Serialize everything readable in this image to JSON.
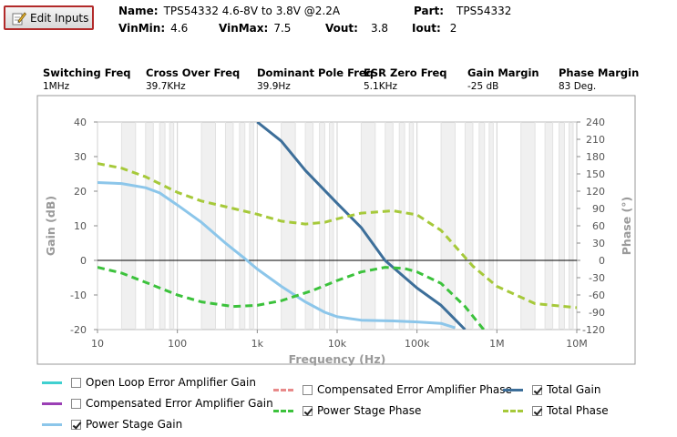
{
  "toolbar": {
    "edit_label": "Edit Inputs"
  },
  "header": {
    "name_label": "Name:",
    "name_value": "TPS54332 4.6-8V to 3.8V @2.2A",
    "part_label": "Part:",
    "part_value": "TPS54332",
    "vinmin_label": "VinMin:",
    "vinmin_value": "4.6",
    "vinmax_label": "VinMax:",
    "vinmax_value": "7.5",
    "vout_label": "Vout:",
    "vout_value": "3.8",
    "iout_label": "Iout:",
    "iout_value": "2"
  },
  "metrics": [
    {
      "label": "Switching Freq",
      "value": "1MHz"
    },
    {
      "label": "Cross Over Freq",
      "value": "39.7KHz"
    },
    {
      "label": "Dominant Pole Freq",
      "value": "39.9Hz"
    },
    {
      "label": "ESR Zero Freq",
      "value": "5.1KHz"
    },
    {
      "label": "Gain Margin",
      "value": "-25 dB"
    },
    {
      "label": "Phase Margin",
      "value": "83 Deg."
    }
  ],
  "legend": [
    {
      "label": "Open Loop Error Amplifier Gain",
      "color": "#40d0d0",
      "dashed": false,
      "checked": false
    },
    {
      "label": "Compensated Error Amplifier Gain",
      "color": "#9b3fb5",
      "dashed": false,
      "checked": false
    },
    {
      "label": "Power Stage Gain",
      "color": "#8cc6ea",
      "dashed": false,
      "checked": true
    },
    {
      "label": "Compensated Error Amplifier Phase",
      "color": "#e88a8a",
      "dashed": true,
      "checked": false
    },
    {
      "label": "Power Stage Phase",
      "color": "#3cc23c",
      "dashed": true,
      "checked": true
    },
    {
      "label": "Total Gain",
      "color": "#3d6f9a",
      "dashed": false,
      "checked": true
    },
    {
      "label": "Total Phase",
      "color": "#a6c93a",
      "dashed": true,
      "checked": true
    }
  ],
  "chart_data": {
    "type": "line",
    "xlabel": "Frequency (Hz)",
    "ylabel": "Gain (dB)",
    "y2label": "Phase (°)",
    "xscale": "log",
    "xlim": [
      10,
      10000000
    ],
    "ylim": [
      -20,
      40
    ],
    "y2lim": [
      -120,
      240
    ],
    "xticks": [
      "10",
      "100",
      "1k",
      "10k",
      "100k",
      "1M",
      "10M"
    ],
    "yticks": [
      "40",
      "30",
      "20",
      "10",
      "0",
      "-10",
      "-20"
    ],
    "y2ticks": [
      "240",
      "210",
      "180",
      "150",
      "120",
      "90",
      "60",
      "30",
      "0",
      "-30",
      "-60",
      "-90",
      "-120"
    ],
    "grid": true,
    "series": [
      {
        "name": "Power Stage Gain",
        "axis": "left",
        "color": "#8cc6ea",
        "dashed": false,
        "x": [
          10,
          20,
          40,
          60,
          100,
          200,
          400,
          700,
          1000,
          2000,
          4000,
          7000,
          10000,
          20000,
          50000,
          100000,
          200000,
          300000
        ],
        "y": [
          22.5,
          22.2,
          21,
          19.5,
          16,
          11,
          5,
          0.5,
          -2.5,
          -7.5,
          -12,
          -15,
          -16.3,
          -17.3,
          -17.5,
          -17.8,
          -18.2,
          -19.5
        ]
      },
      {
        "name": "Total Gain",
        "axis": "left",
        "color": "#3d6f9a",
        "dashed": false,
        "x": [
          1000,
          2000,
          4000,
          10000,
          20000,
          39700,
          100000,
          200000,
          400000
        ],
        "y": [
          40,
          34.5,
          26,
          16.5,
          9.5,
          0,
          -8,
          -13,
          -20
        ]
      },
      {
        "name": "Total Phase",
        "axis": "right",
        "color": "#a6c93a",
        "dashed": true,
        "x": [
          10,
          20,
          40,
          100,
          200,
          500,
          1000,
          2000,
          4000,
          7000,
          10000,
          20000,
          50000,
          100000,
          200000,
          500000,
          1000000,
          3000000,
          10000000
        ],
        "y": [
          168,
          160,
          145,
          118,
          103,
          90,
          80,
          68,
          63,
          66,
          72,
          82,
          86,
          79,
          52,
          -10,
          -45,
          -75,
          -82
        ]
      },
      {
        "name": "Power Stage Phase",
        "axis": "right",
        "color": "#3cc23c",
        "dashed": true,
        "x": [
          10,
          20,
          40,
          100,
          200,
          500,
          1000,
          2000,
          5000,
          10000,
          20000,
          40000,
          70000,
          100000,
          200000,
          400000,
          700000
        ],
        "y": [
          -12,
          -22,
          -38,
          -60,
          -72,
          -80,
          -78,
          -70,
          -52,
          -35,
          -20,
          -12,
          -14,
          -20,
          -40,
          -80,
          -122
        ]
      }
    ]
  }
}
